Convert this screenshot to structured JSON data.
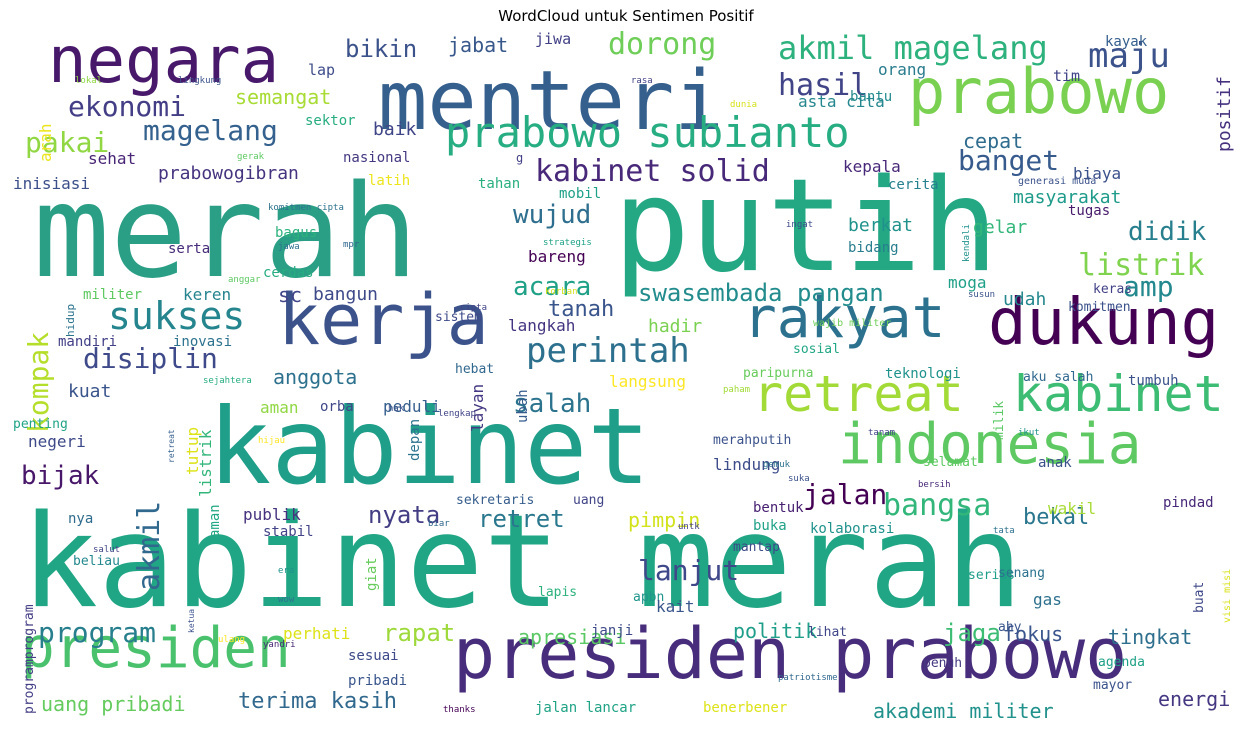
{
  "title": "WordCloud untuk Sentimen Positif",
  "words": [
    {
      "text": "merah",
      "color": "#2a9f85",
      "weight": 100
    },
    {
      "text": "putih",
      "color": "#24a884",
      "weight": 100
    },
    {
      "text": "kabinet merah",
      "color": "#21a685",
      "weight": 98
    },
    {
      "text": "kabinet",
      "color": "#1f9e89",
      "weight": 95
    },
    {
      "text": "menteri",
      "color": "#355f8d",
      "weight": 80
    },
    {
      "text": "presiden prabowo",
      "color": "#472d7b",
      "weight": 75
    },
    {
      "text": "negara",
      "color": "#48186a",
      "weight": 70
    },
    {
      "text": "kerja",
      "color": "#3b528b",
      "weight": 70
    },
    {
      "text": "dukung",
      "color": "#440154",
      "weight": 68
    },
    {
      "text": "prabowo",
      "color": "#7ad151",
      "weight": 65
    },
    {
      "text": "rakyat",
      "color": "#2c728e",
      "weight": 62
    },
    {
      "text": "indonesia",
      "color": "#5ec962",
      "weight": 60
    },
    {
      "text": "presiden",
      "color": "#4ac16d",
      "weight": 60
    },
    {
      "text": "retreat",
      "color": "#a2da37",
      "weight": 50
    },
    {
      "text": "kabinet",
      "color": "#3dbc74",
      "weight": 50
    },
    {
      "text": "prabowo subianto",
      "color": "#26ad81",
      "weight": 45
    },
    {
      "text": "sukses",
      "color": "#25858e",
      "weight": 42
    },
    {
      "text": "akmil magelang",
      "color": "#2db27d",
      "weight": 40
    },
    {
      "text": "perintah",
      "color": "#2d708e",
      "weight": 40
    },
    {
      "text": "disiplin",
      "color": "#3e4a89",
      "weight": 38
    },
    {
      "text": "magelang",
      "color": "#34618d",
      "weight": 36
    },
    {
      "text": "ekonomi",
      "color": "#433e85",
      "weight": 34
    },
    {
      "text": "dorong",
      "color": "#6ece58",
      "weight": 34
    },
    {
      "text": "maju",
      "color": "#3b528b",
      "weight": 34
    },
    {
      "text": "hasil",
      "color": "#414487",
      "weight": 32
    },
    {
      "text": "kabinet solid",
      "color": "#482878",
      "weight": 32
    },
    {
      "text": "bangsa",
      "color": "#32b67a",
      "weight": 32
    },
    {
      "text": "swasembada pangan",
      "color": "#228c8d",
      "weight": 30
    },
    {
      "text": "listrik",
      "color": "#7fd34e",
      "weight": 30
    },
    {
      "text": "akmil",
      "color": "#31688e",
      "weight": 30
    },
    {
      "text": "lanjut",
      "color": "#3f4889",
      "weight": 32
    },
    {
      "text": "jalan",
      "color": "#440154",
      "weight": 30
    },
    {
      "text": "program",
      "color": "#277f8e",
      "weight": 28
    },
    {
      "text": "kompak",
      "color": "#b5de2b",
      "weight": 28
    },
    {
      "text": "banget",
      "color": "#375b8d",
      "weight": 28
    },
    {
      "text": "pakai",
      "color": "#90d743",
      "weight": 28
    },
    {
      "text": "wujud",
      "color": "#2e6e8e",
      "weight": 27
    },
    {
      "text": "acara",
      "color": "#1fa187",
      "weight": 27
    },
    {
      "text": "salah",
      "color": "#2c738e",
      "weight": 27
    },
    {
      "text": "amp",
      "color": "#23898e",
      "weight": 26
    },
    {
      "text": "didik",
      "color": "#277f8e",
      "weight": 26
    },
    {
      "text": "bijak",
      "color": "#481769",
      "weight": 26
    },
    {
      "text": "bikin",
      "color": "#3b528b",
      "weight": 24
    },
    {
      "text": "retret",
      "color": "#2a788e",
      "weight": 24
    },
    {
      "text": "nyata",
      "color": "#433d84",
      "weight": 24
    },
    {
      "text": "terima kasih",
      "color": "#31688e",
      "weight": 24
    },
    {
      "text": "uang pribadi",
      "color": "#65cb5e",
      "weight": 22
    },
    {
      "text": "akademi militer",
      "color": "#21918c",
      "weight": 22
    },
    {
      "text": "jaga",
      "color": "#3dbc74",
      "weight": 22
    },
    {
      "text": "rapat",
      "color": "#9dd93b",
      "weight": 22
    },
    {
      "text": "bekal",
      "color": "#2a768e",
      "weight": 22
    },
    {
      "text": "tanah",
      "color": "#39558c",
      "weight": 22
    },
    {
      "text": "pimpin",
      "color": "#d2e21b",
      "weight": 20
    },
    {
      "text": "apresiasi",
      "color": "#5ac864",
      "weight": 20
    },
    {
      "text": "politik",
      "color": "#1f9e89",
      "weight": 20
    },
    {
      "text": "anggota",
      "color": "#2d718e",
      "weight": 20
    },
    {
      "text": "jabat",
      "color": "#38588c",
      "weight": 20
    },
    {
      "text": "cepat",
      "color": "#2f6c8e",
      "weight": 20
    },
    {
      "text": "fokus",
      "color": "#3a548c",
      "weight": 20
    },
    {
      "text": "tingkat",
      "color": "#2e6f8e",
      "weight": 20
    },
    {
      "text": "energi",
      "color": "#453781",
      "weight": 20
    },
    {
      "text": "semangat",
      "color": "#a8db34",
      "weight": 18
    },
    {
      "text": "baik",
      "color": "#404588",
      "weight": 18
    },
    {
      "text": "sehat",
      "color": "#482576",
      "weight": 16
    },
    {
      "text": "inisiasi",
      "color": "#3c4f8a",
      "weight": 16
    },
    {
      "text": "prabowogibran",
      "color": "#46337f",
      "weight": 18
    },
    {
      "text": "orang",
      "color": "#287c8e",
      "weight": 16
    },
    {
      "text": "asta cita",
      "color": "#24878e",
      "weight": 16
    },
    {
      "text": "bantu",
      "color": "#238a8d",
      "weight": 14
    },
    {
      "text": "sektor",
      "color": "#27ad81",
      "weight": 14
    },
    {
      "text": "arah",
      "color": "#ece51b",
      "weight": 16
    },
    {
      "text": "jiwa",
      "color": "#424186",
      "weight": 15
    },
    {
      "text": "lap",
      "color": "#3e4c8a",
      "weight": 15
    },
    {
      "text": "tim",
      "color": "#414487",
      "weight": 15
    },
    {
      "text": "kayak",
      "color": "#355f8d",
      "weight": 14
    },
    {
      "text": "positif",
      "color": "#46317e",
      "weight": 18
    },
    {
      "text": "biaya",
      "color": "#3b518b",
      "weight": 16
    },
    {
      "text": "kepala",
      "color": "#482979",
      "weight": 16
    },
    {
      "text": "masyarakat",
      "color": "#1e9b8a",
      "weight": 18
    },
    {
      "text": "berkat",
      "color": "#20928c",
      "weight": 18
    },
    {
      "text": "gelar",
      "color": "#32b67a",
      "weight": 18
    },
    {
      "text": "tugas",
      "color": "#481b6d",
      "weight": 14
    },
    {
      "text": "cerita",
      "color": "#26818e",
      "weight": 14
    },
    {
      "text": "nasional",
      "color": "#453882",
      "weight": 14
    },
    {
      "text": "latih",
      "color": "#ece51b",
      "weight": 14
    },
    {
      "text": "tahan",
      "color": "#29af7f",
      "weight": 14
    },
    {
      "text": "mobil",
      "color": "#1fa088",
      "weight": 14
    },
    {
      "text": "bagus",
      "color": "#2db27d",
      "weight": 14
    },
    {
      "text": "serta",
      "color": "#472c7a",
      "weight": 14
    },
    {
      "text": "cerdas",
      "color": "#27ad81",
      "weight": 14
    },
    {
      "text": "bareng",
      "color": "#440154",
      "weight": 16
    },
    {
      "text": "bidang",
      "color": "#287d8e",
      "weight": 14
    },
    {
      "text": "militer",
      "color": "#5ec962",
      "weight": 14
    },
    {
      "text": "keren",
      "color": "#25848e",
      "weight": 16
    },
    {
      "text": "sc",
      "color": "#404688",
      "weight": 20
    },
    {
      "text": "bangun",
      "color": "#3e4a89",
      "weight": 18
    },
    {
      "text": "moga",
      "color": "#1fa188",
      "weight": 16
    },
    {
      "text": "udah",
      "color": "#24878e",
      "weight": 18
    },
    {
      "text": "keras",
      "color": "#424186",
      "weight": 13
    },
    {
      "text": "komitmen",
      "color": "#3b518b",
      "weight": 13
    },
    {
      "text": "langkah",
      "color": "#453581",
      "weight": 16
    },
    {
      "text": "hadir",
      "color": "#7ad151",
      "weight": 18
    },
    {
      "text": "mandiri",
      "color": "#424086",
      "weight": 14
    },
    {
      "text": "inovasi",
      "color": "#2c728e",
      "weight": 14
    },
    {
      "text": "kuat",
      "color": "#3a548c",
      "weight": 18
    },
    {
      "text": "peduli",
      "color": "#355f8d",
      "weight": 16
    },
    {
      "text": "hebat",
      "color": "#31688e",
      "weight": 13
    },
    {
      "text": "langsung",
      "color": "#fde725",
      "weight": 16
    },
    {
      "text": "paripurna",
      "color": "#67cc5c",
      "weight": 13
    },
    {
      "text": "teknologi",
      "color": "#20928c",
      "weight": 14
    },
    {
      "text": "aku salah",
      "color": "#31688e",
      "weight": 13
    },
    {
      "text": "tumbuh",
      "color": "#3b528b",
      "weight": 14
    },
    {
      "text": "sosial",
      "color": "#22a785",
      "weight": 13
    },
    {
      "text": "aman",
      "color": "#90d743",
      "weight": 16
    },
    {
      "text": "orba",
      "color": "#3f4788",
      "weight": 14
    },
    {
      "text": "tutup",
      "color": "#dde318",
      "weight": 16
    },
    {
      "text": "listrik",
      "color": "#32b67a",
      "weight": 16
    },
    {
      "text": "aman",
      "color": "#22a884",
      "weight": 14
    },
    {
      "text": "penting",
      "color": "#20a386",
      "weight": 13
    },
    {
      "text": "negeri",
      "color": "#3e4989",
      "weight": 16
    },
    {
      "text": "depan",
      "color": "#2c738e",
      "weight": 14
    },
    {
      "text": "layan",
      "color": "#443983",
      "weight": 16
    },
    {
      "text": "ubah",
      "color": "#365c8d",
      "weight": 14
    },
    {
      "text": "merahputih",
      "color": "#3b528b",
      "weight": 13
    },
    {
      "text": "lindung",
      "color": "#3e4c8a",
      "weight": 16
    },
    {
      "text": "selamat",
      "color": "#5ec962",
      "weight": 13
    },
    {
      "text": "anak",
      "color": "#3b518b",
      "weight": 14
    },
    {
      "text": "milik",
      "color": "#5ac864",
      "weight": 13
    },
    {
      "text": "nya",
      "color": "#2f6b8e",
      "weight": 14
    },
    {
      "text": "publik",
      "color": "#46327e",
      "weight": 16
    },
    {
      "text": "stabil",
      "color": "#414287",
      "weight": 14
    },
    {
      "text": "sekretaris",
      "color": "#365d8d",
      "weight": 13
    },
    {
      "text": "uang",
      "color": "#414487",
      "weight": 13
    },
    {
      "text": "bentuk",
      "color": "#482173",
      "weight": 14
    },
    {
      "text": "buka",
      "color": "#1fa287",
      "weight": 14
    },
    {
      "text": "wakil",
      "color": "#a8db34",
      "weight": 16
    },
    {
      "text": "pindad",
      "color": "#482878",
      "weight": 14
    },
    {
      "text": "kolaborasi",
      "color": "#20928c",
      "weight": 14
    },
    {
      "text": "mantap",
      "color": "#3e4a89",
      "weight": 13
    },
    {
      "text": "giat",
      "color": "#67cc5c",
      "weight": 14
    },
    {
      "text": "beliau",
      "color": "#23898e",
      "weight": 13
    },
    {
      "text": "programprogram",
      "color": "#433e85",
      "weight": 13
    },
    {
      "text": "serius",
      "color": "#1f9e89",
      "weight": 13
    },
    {
      "text": "senang",
      "color": "#2c718e",
      "weight": 13
    },
    {
      "text": "gas",
      "color": "#2d708e",
      "weight": 16
    },
    {
      "text": "lapis",
      "color": "#2db27d",
      "weight": 13
    },
    {
      "text": "apbn",
      "color": "#1f958b",
      "weight": 13
    },
    {
      "text": "kait",
      "color": "#39568c",
      "weight": 16
    },
    {
      "text": "janji",
      "color": "#3e4989",
      "weight": 14
    },
    {
      "text": "lihat",
      "color": "#404688",
      "weight": 13
    },
    {
      "text": "ahy",
      "color": "#3a548c",
      "weight": 13
    },
    {
      "text": "buat",
      "color": "#3f4889",
      "weight": 13
    },
    {
      "text": "perhati",
      "color": "#dde318",
      "weight": 16
    },
    {
      "text": "sesuai",
      "color": "#3e4a89",
      "weight": 14
    },
    {
      "text": "pribadi",
      "color": "#39558c",
      "weight": 14
    },
    {
      "text": "penuh",
      "color": "#453882",
      "weight": 13
    },
    {
      "text": "agenda",
      "color": "#1fa188",
      "weight": 13
    },
    {
      "text": "mayor",
      "color": "#3b528b",
      "weight": 13
    },
    {
      "text": "jalan lancar",
      "color": "#20a386",
      "weight": 14
    },
    {
      "text": "benerbener",
      "color": "#dde318",
      "weight": 14
    },
    {
      "text": "visi misi",
      "color": "#d8e219",
      "weight": 10
    },
    {
      "text": "lokal",
      "color": "#8fd744",
      "weight": 9
    },
    {
      "text": "lingkung",
      "color": "#3b528b",
      "weight": 9
    },
    {
      "text": "rasa",
      "color": "#414487",
      "weight": 9
    },
    {
      "text": "dunia",
      "color": "#d8e219",
      "weight": 9
    },
    {
      "text": "gerak",
      "color": "#5ec962",
      "weight": 9
    },
    {
      "text": "g",
      "color": "#424086",
      "weight": 12
    },
    {
      "text": "generasi muda",
      "color": "#3b528b",
      "weight": 10
    },
    {
      "text": "kendali",
      "color": "#20928c",
      "weight": 9
    },
    {
      "text": "komitmen cipta",
      "color": "#2c728e",
      "weight": 9
    },
    {
      "text": "jawa",
      "color": "#2d708e",
      "weight": 9
    },
    {
      "text": "ingat",
      "color": "#3e4c8a",
      "weight": 9
    },
    {
      "text": "strategis",
      "color": "#20a386",
      "weight": 9
    },
    {
      "text": "mpr",
      "color": "#31688e",
      "weight": 9
    },
    {
      "text": "anggar",
      "color": "#5ec962",
      "weight": 9
    },
    {
      "text": "korban",
      "color": "#d2e21b",
      "weight": 9
    },
    {
      "text": "susun",
      "color": "#3b528b",
      "weight": 9
    },
    {
      "text": "hidup",
      "color": "#2c738e",
      "weight": 11
    },
    {
      "text": "sistem",
      "color": "#3e4a89",
      "weight": 13
    },
    {
      "text": "cipta",
      "color": "#414487",
      "weight": 9
    },
    {
      "text": "wajib militer",
      "color": "#6ece58",
      "weight": 10
    },
    {
      "text": "sejahtera",
      "color": "#27ad81",
      "weight": 9
    },
    {
      "text": "paham",
      "color": "#a2da37",
      "weight": 9
    },
    {
      "text": "hak",
      "color": "#3b528b",
      "weight": 9
    },
    {
      "text": "lengkap",
      "color": "#414487",
      "weight": 9
    },
    {
      "text": "hijau",
      "color": "#fde725",
      "weight": 9
    },
    {
      "text": "retreat",
      "color": "#355f8d",
      "weight": 8
    },
    {
      "text": "tanam",
      "color": "#414487",
      "weight": 9
    },
    {
      "text": "ikut",
      "color": "#20928c",
      "weight": 9
    },
    {
      "text": "gemuk",
      "color": "#2c728e",
      "weight": 9
    },
    {
      "text": "suka",
      "color": "#3b528b",
      "weight": 9
    },
    {
      "text": "bersih",
      "color": "#482878",
      "weight": 9
    },
    {
      "text": "biar",
      "color": "#31688e",
      "weight": 9
    },
    {
      "text": "untk",
      "color": "#424086",
      "weight": 9
    },
    {
      "text": "tata",
      "color": "#2c728e",
      "weight": 9
    },
    {
      "text": "salut",
      "color": "#414487",
      "weight": 9
    },
    {
      "text": "era",
      "color": "#20928c",
      "weight": 9
    },
    {
      "text": "wow",
      "color": "#2c728e",
      "weight": 9
    },
    {
      "text": "ketua",
      "color": "#3b528b",
      "weight": 8
    },
    {
      "text": "ulang",
      "color": "#fde725",
      "weight": 9
    },
    {
      "text": "yandri",
      "color": "#482878",
      "weight": 9
    },
    {
      "text": "patriotisme",
      "color": "#31688e",
      "weight": 9
    },
    {
      "text": "thanks",
      "color": "#440154",
      "weight": 9
    }
  ]
}
